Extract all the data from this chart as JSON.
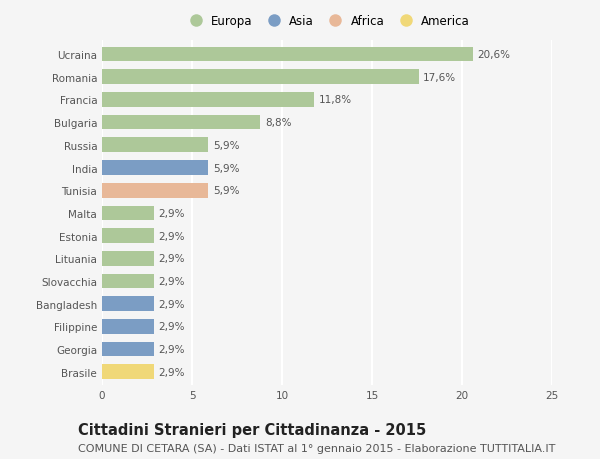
{
  "categories": [
    "Ucraina",
    "Romania",
    "Francia",
    "Bulgaria",
    "Russia",
    "India",
    "Tunisia",
    "Malta",
    "Estonia",
    "Lituania",
    "Slovacchia",
    "Bangladesh",
    "Filippine",
    "Georgia",
    "Brasile"
  ],
  "values": [
    20.6,
    17.6,
    11.8,
    8.8,
    5.9,
    5.9,
    5.9,
    2.9,
    2.9,
    2.9,
    2.9,
    2.9,
    2.9,
    2.9,
    2.9
  ],
  "labels": [
    "20,6%",
    "17,6%",
    "11,8%",
    "8,8%",
    "5,9%",
    "5,9%",
    "5,9%",
    "2,9%",
    "2,9%",
    "2,9%",
    "2,9%",
    "2,9%",
    "2,9%",
    "2,9%",
    "2,9%"
  ],
  "continents": [
    "Europa",
    "Europa",
    "Europa",
    "Europa",
    "Europa",
    "Asia",
    "Africa",
    "Europa",
    "Europa",
    "Europa",
    "Europa",
    "Asia",
    "Asia",
    "Asia",
    "America"
  ],
  "colors": {
    "Europa": "#adc899",
    "Asia": "#7b9dc4",
    "Africa": "#e8b898",
    "America": "#f0d878"
  },
  "xlim": [
    0,
    25
  ],
  "xticks": [
    0,
    5,
    10,
    15,
    20,
    25
  ],
  "title": "Cittadini Stranieri per Cittadinanza - 2015",
  "subtitle": "COMUNE DI CETARA (SA) - Dati ISTAT al 1° gennaio 2015 - Elaborazione TUTTITALIA.IT",
  "background_color": "#f5f5f5",
  "plot_bg_color": "#f5f5f5",
  "grid_color": "#ffffff",
  "bar_height": 0.65,
  "title_fontsize": 10.5,
  "subtitle_fontsize": 8,
  "label_fontsize": 7.5,
  "tick_fontsize": 7.5,
  "legend_fontsize": 8.5
}
